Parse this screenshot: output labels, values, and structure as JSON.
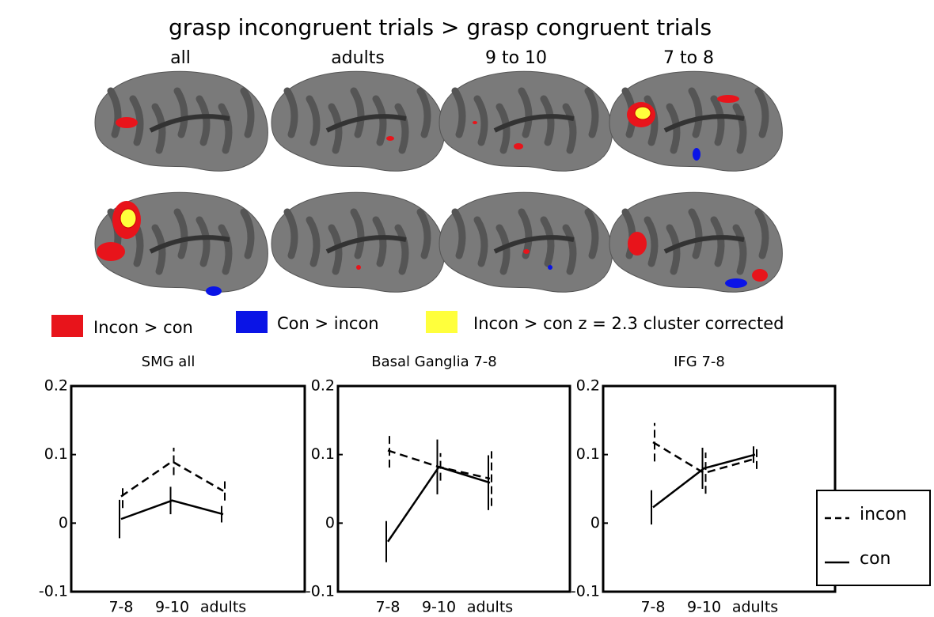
{
  "title": "grasp incongruent trials > grasp congruent trials",
  "panel_labels": [
    "all",
    "adults",
    "9 to 10",
    "7 to 8"
  ],
  "color_legend": [
    {
      "label": "Incon > con",
      "color": "#e8141b"
    },
    {
      "label": "Con > incon",
      "color": "#0a14e6"
    },
    {
      "label": "Incon > con z = 2.3 cluster corrected",
      "color": "#ffff3c"
    }
  ],
  "chart_data": [
    {
      "type": "line",
      "title": "SMG all",
      "categories": [
        "7-8",
        "9-10",
        "adults"
      ],
      "ylim": [
        -0.1,
        0.2
      ],
      "yticks": [
        -0.1,
        0,
        0.1,
        0.2
      ],
      "series": [
        {
          "name": "incon",
          "color": "#000000",
          "dashed": true,
          "values": [
            0.039,
            0.09,
            0.047
          ],
          "errors": [
            0.017,
            0.02,
            0.014
          ]
        },
        {
          "name": "con",
          "color": "#000000",
          "dashed": false,
          "values": [
            0.006,
            0.033,
            0.013
          ],
          "errors": [
            0.028,
            0.02,
            0.012
          ]
        }
      ]
    },
    {
      "type": "line",
      "title": "Basal Ganglia 7-8",
      "categories": [
        "7-8",
        "9-10",
        "adults"
      ],
      "ylim": [
        -0.1,
        0.2
      ],
      "yticks": [
        -0.1,
        0,
        0.1,
        0.2
      ],
      "series": [
        {
          "color": "#000000",
          "dashed": true,
          "values": [
            0.106,
            0.082,
            0.065
          ],
          "errors": [
            0.025,
            0.02,
            0.04
          ]
        },
        {
          "color": "#000000",
          "dashed": false,
          "values": [
            -0.027,
            0.082,
            0.059
          ],
          "errors": [
            0.03,
            0.04,
            0.04
          ]
        }
      ]
    },
    {
      "type": "line",
      "title": "IFG 7-8",
      "categories": [
        "7-8",
        "9-10",
        "adults"
      ],
      "ylim": [
        -0.1,
        0.2
      ],
      "yticks": [
        -0.1,
        0,
        0.1,
        0.2
      ],
      "series": [
        {
          "color": "#000000",
          "dashed": true,
          "values": [
            0.118,
            0.073,
            0.094
          ],
          "errors": [
            0.028,
            0.03,
            0.015
          ]
        },
        {
          "color": "#000000",
          "dashed": false,
          "values": [
            0.023,
            0.08,
            0.1
          ],
          "errors": [
            0.025,
            0.03,
            0.012
          ]
        }
      ]
    }
  ]
}
